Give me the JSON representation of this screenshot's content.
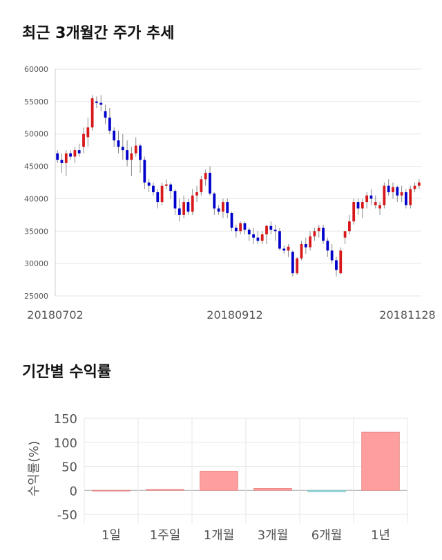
{
  "sections": {
    "price_title": "최근 3개월간 주가 추세",
    "return_title": "기간별 수익률"
  },
  "chart_data": [
    {
      "type": "candlestick",
      "title": "최근 3개월간 주가 추세",
      "ylim": [
        25000,
        60000
      ],
      "yticks": [
        25000,
        30000,
        35000,
        40000,
        45000,
        50000,
        55000,
        60000
      ],
      "xtick_labels": [
        "20180702",
        "20180912",
        "20181128"
      ],
      "grid": true,
      "up_color": "#d7191c",
      "down_color": "#0000cc",
      "ohlc": [
        [
          47000,
          47500,
          45500,
          46000
        ],
        [
          46000,
          47000,
          44000,
          45500
        ],
        [
          45500,
          47500,
          43500,
          47000
        ],
        [
          47000,
          47500,
          46000,
          46500
        ],
        [
          46500,
          48000,
          45500,
          47500
        ],
        [
          47500,
          48500,
          46500,
          47000
        ],
        [
          48000,
          51000,
          47000,
          50000
        ],
        [
          49500,
          52500,
          48000,
          51000
        ],
        [
          51000,
          56000,
          50500,
          55500
        ],
        [
          55000,
          55800,
          54000,
          54800
        ],
        [
          54800,
          56000,
          53500,
          54500
        ],
        [
          53500,
          54500,
          51500,
          52500
        ],
        [
          52500,
          54000,
          50000,
          50500
        ],
        [
          50500,
          51000,
          48000,
          49000
        ],
        [
          49000,
          50500,
          47000,
          48000
        ],
        [
          48000,
          50000,
          46000,
          47500
        ],
        [
          47500,
          49000,
          45000,
          46000
        ],
        [
          46000,
          48000,
          43500,
          47000
        ],
        [
          47000,
          49500,
          46500,
          48200
        ],
        [
          48200,
          48500,
          44000,
          46000
        ],
        [
          46000,
          46500,
          41500,
          42500
        ],
        [
          42500,
          43000,
          41000,
          42000
        ],
        [
          42000,
          42500,
          40500,
          41000
        ],
        [
          41000,
          41500,
          38500,
          39500
        ],
        [
          39500,
          42500,
          39000,
          42000
        ],
        [
          42000,
          43000,
          41500,
          42200
        ],
        [
          42200,
          42500,
          40000,
          41200
        ],
        [
          41200,
          41500,
          37500,
          38500
        ],
        [
          38500,
          40000,
          36500,
          37500
        ],
        [
          37500,
          40500,
          37000,
          39500
        ],
        [
          39500,
          40000,
          37500,
          38000
        ],
        [
          38000,
          41500,
          37500,
          40500
        ],
        [
          40500,
          42000,
          39500,
          41000
        ],
        [
          41000,
          43500,
          40500,
          43000
        ],
        [
          43000,
          44500,
          42000,
          44000
        ],
        [
          44000,
          45000,
          40500,
          40800
        ],
        [
          40800,
          41000,
          37500,
          38500
        ],
        [
          38500,
          39000,
          37500,
          38000
        ],
        [
          38000,
          40000,
          37000,
          39500
        ],
        [
          39500,
          40000,
          37000,
          37800
        ],
        [
          37800,
          38000,
          35000,
          35500
        ],
        [
          35500,
          36000,
          34000,
          35000
        ],
        [
          35000,
          36500,
          34500,
          36200
        ],
        [
          36200,
          36500,
          34500,
          35200
        ],
        [
          35200,
          35500,
          33500,
          34500
        ],
        [
          34500,
          35500,
          33000,
          34000
        ],
        [
          34000,
          35000,
          33000,
          33500
        ],
        [
          33500,
          35000,
          33000,
          34500
        ],
        [
          34500,
          36000,
          33000,
          35800
        ],
        [
          35800,
          36500,
          34500,
          35200
        ],
        [
          35200,
          36000,
          33500,
          35000
        ],
        [
          35000,
          35500,
          32000,
          32300
        ],
        [
          32300,
          32800,
          31500,
          32000
        ],
        [
          32000,
          33000,
          31000,
          32600
        ],
        [
          31800,
          32000,
          28000,
          28500
        ],
        [
          28500,
          31000,
          28200,
          30800
        ],
        [
          30800,
          33500,
          30500,
          33000
        ],
        [
          33000,
          34000,
          31500,
          32500
        ],
        [
          32500,
          35000,
          32000,
          34200
        ],
        [
          34200,
          35500,
          33500,
          35000
        ],
        [
          35000,
          36000,
          34000,
          35500
        ],
        [
          35500,
          36000,
          33000,
          33500
        ],
        [
          33500,
          34000,
          31000,
          32000
        ],
        [
          32000,
          33000,
          30000,
          30500
        ],
        [
          30500,
          31000,
          28000,
          29000
        ],
        [
          28500,
          32500,
          28300,
          32000
        ],
        [
          34000,
          35000,
          33000,
          35000
        ],
        [
          35000,
          37500,
          34500,
          36500
        ],
        [
          36500,
          40000,
          36000,
          39500
        ],
        [
          39500,
          40000,
          37500,
          38500
        ],
        [
          38500,
          40000,
          37000,
          39500
        ],
        [
          39500,
          41000,
          38500,
          40500
        ],
        [
          40500,
          41500,
          39000,
          40000
        ],
        [
          39000,
          40500,
          38500,
          39500
        ],
        [
          38500,
          39500,
          37500,
          39000
        ],
        [
          39000,
          42500,
          38500,
          42000
        ],
        [
          42000,
          43000,
          40500,
          41000
        ],
        [
          41000,
          42500,
          40000,
          41800
        ],
        [
          41800,
          42000,
          39500,
          40500
        ],
        [
          40500,
          42000,
          39500,
          41000
        ],
        [
          41000,
          41500,
          38500,
          39000
        ],
        [
          39000,
          42000,
          38500,
          41500
        ],
        [
          41500,
          42500,
          41000,
          42000
        ],
        [
          42000,
          43000,
          41500,
          42500
        ]
      ]
    },
    {
      "type": "bar",
      "categories": [
        "1일",
        "1주일",
        "1개월",
        "3개월",
        "6개월",
        "1년"
      ],
      "values": [
        0,
        2,
        40,
        4,
        -3,
        121
      ],
      "ylabel": "수익률(%)",
      "ylim": [
        -60,
        150
      ],
      "yticks": [
        -50,
        0,
        50,
        100,
        150
      ],
      "positive_color": "#ff9e9e",
      "negative_color": "#9fdcdc",
      "grid": true
    }
  ]
}
